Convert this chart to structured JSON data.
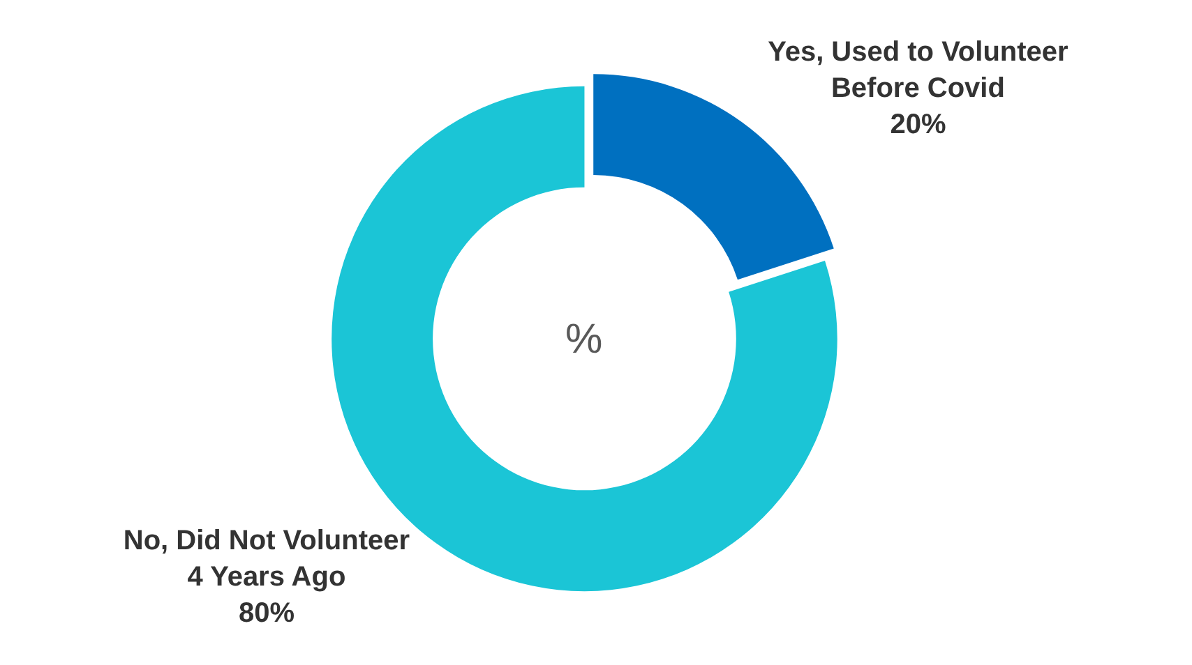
{
  "chart_data": {
    "type": "donut",
    "categories": [
      "Yes, Used to Volunteer\nBefore Covid",
      "No, Did Not Volunteer\n4 Years Ago"
    ],
    "values": [
      20,
      80
    ],
    "colors": [
      "#0070c0",
      "#1bc5d6"
    ],
    "value_labels": [
      "20%",
      "80%"
    ],
    "annotations": [
      "%"
    ],
    "legend": false
  }
}
